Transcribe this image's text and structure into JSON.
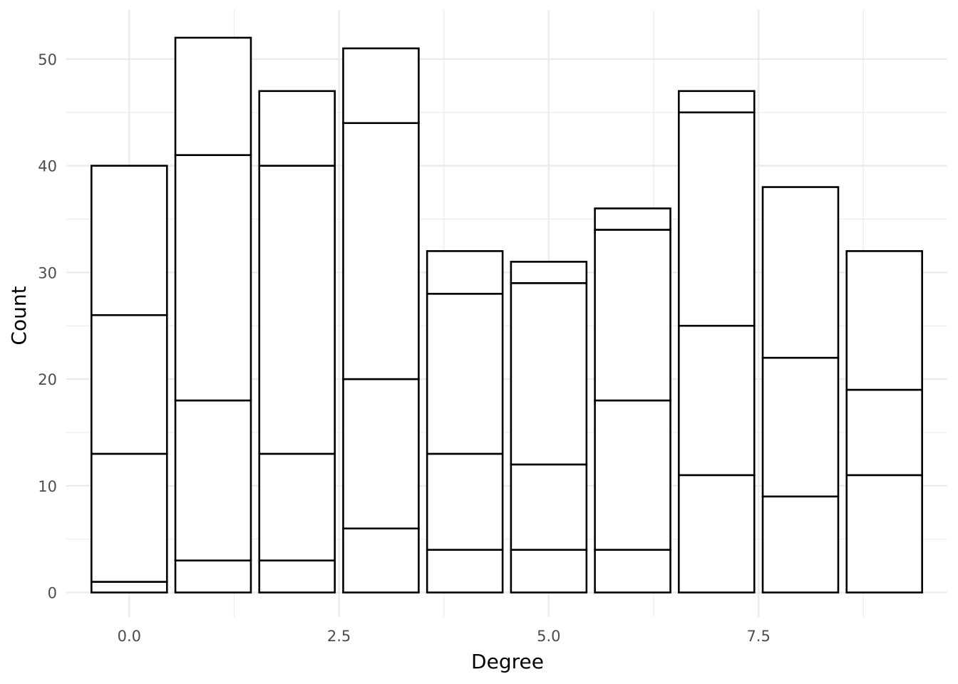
{
  "chart_data": {
    "type": "bar",
    "stacked": true,
    "xlabel": "Degree",
    "ylabel": "Count",
    "x": [
      0,
      1,
      2,
      3,
      4,
      5,
      6,
      7,
      8,
      9
    ],
    "segment_boundaries": [
      [
        1,
        13,
        26,
        40
      ],
      [
        3,
        18,
        41,
        52
      ],
      [
        3,
        13,
        40,
        47
      ],
      [
        6,
        20,
        44,
        51
      ],
      [
        4,
        13,
        28,
        32
      ],
      [
        4,
        12,
        29,
        31
      ],
      [
        4,
        18,
        34,
        36
      ],
      [
        11,
        25,
        45,
        47
      ],
      [
        9,
        22,
        38
      ],
      [
        11,
        19,
        32
      ]
    ],
    "totals": [
      40,
      52,
      47,
      51,
      32,
      31,
      36,
      47,
      38,
      32
    ],
    "xlim": [
      -0.75,
      9.75
    ],
    "ylim": [
      -2.3,
      54.6
    ],
    "x_ticks": [
      "0.0",
      "2.5",
      "5.0",
      "7.5"
    ],
    "x_tick_values": [
      0,
      2.5,
      5,
      7.5
    ],
    "y_ticks": [
      "0",
      "10",
      "20",
      "30",
      "40",
      "50"
    ],
    "y_tick_values": [
      0,
      10,
      20,
      30,
      40,
      50
    ],
    "bar_fill": "#ffffff",
    "bar_stroke": "#000000",
    "grid": true,
    "grid_color": "#ebebeb",
    "legend": "none"
  }
}
